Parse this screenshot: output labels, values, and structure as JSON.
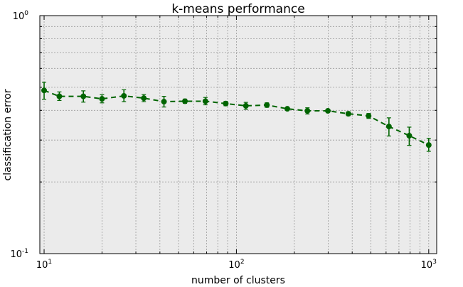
{
  "chart_data": {
    "type": "line",
    "title": "k-means performance",
    "xlabel": "number of clusters",
    "ylabel": "classification error",
    "xscale": "log",
    "yscale": "log",
    "xlim": [
      9.5,
      1100
    ],
    "ylim": [
      0.1,
      1.0
    ],
    "grid": true,
    "legend": "none",
    "x_ticks": [
      {
        "value": 10,
        "base": "10",
        "exp": "1"
      },
      {
        "value": 100,
        "base": "10",
        "exp": "2"
      },
      {
        "value": 1000,
        "base": "10",
        "exp": "3"
      }
    ],
    "y_ticks": [
      {
        "value": 0.1,
        "base": "10",
        "exp": "-1"
      },
      {
        "value": 1.0,
        "base": "10",
        "exp": "0"
      }
    ],
    "series": [
      {
        "color": "#006400",
        "line_style": "dashed",
        "marker": "circle",
        "points": [
          {
            "x": 10,
            "y": 0.485,
            "err_low": 0.445,
            "err_high": 0.525
          },
          {
            "x": 12,
            "y": 0.458,
            "err_low": 0.44,
            "err_high": 0.478
          },
          {
            "x": 16,
            "y": 0.458,
            "err_low": 0.433,
            "err_high": 0.483
          },
          {
            "x": 20,
            "y": 0.447,
            "err_low": 0.43,
            "err_high": 0.465
          },
          {
            "x": 26,
            "y": 0.46,
            "err_low": 0.435,
            "err_high": 0.488
          },
          {
            "x": 33,
            "y": 0.45,
            "err_low": 0.435,
            "err_high": 0.466
          },
          {
            "x": 42,
            "y": 0.435,
            "err_low": 0.413,
            "err_high": 0.458
          },
          {
            "x": 54,
            "y": 0.437,
            "err_low": 0.428,
            "err_high": 0.446
          },
          {
            "x": 69,
            "y": 0.437,
            "err_low": 0.422,
            "err_high": 0.453
          },
          {
            "x": 88,
            "y": 0.427,
            "err_low": 0.418,
            "err_high": 0.436
          },
          {
            "x": 112,
            "y": 0.418,
            "err_low": 0.404,
            "err_high": 0.432
          },
          {
            "x": 144,
            "y": 0.421,
            "err_low": 0.412,
            "err_high": 0.43
          },
          {
            "x": 184,
            "y": 0.406,
            "err_low": 0.402,
            "err_high": 0.41
          },
          {
            "x": 234,
            "y": 0.398,
            "err_low": 0.386,
            "err_high": 0.41
          },
          {
            "x": 299,
            "y": 0.398,
            "err_low": 0.393,
            "err_high": 0.403
          },
          {
            "x": 382,
            "y": 0.387,
            "err_low": 0.38,
            "err_high": 0.394
          },
          {
            "x": 487,
            "y": 0.379,
            "err_low": 0.37,
            "err_high": 0.388
          },
          {
            "x": 621,
            "y": 0.342,
            "err_low": 0.312,
            "err_high": 0.372
          },
          {
            "x": 792,
            "y": 0.313,
            "err_low": 0.285,
            "err_high": 0.34
          },
          {
            "x": 1000,
            "y": 0.286,
            "err_low": 0.269,
            "err_high": 0.305
          }
        ]
      }
    ]
  }
}
